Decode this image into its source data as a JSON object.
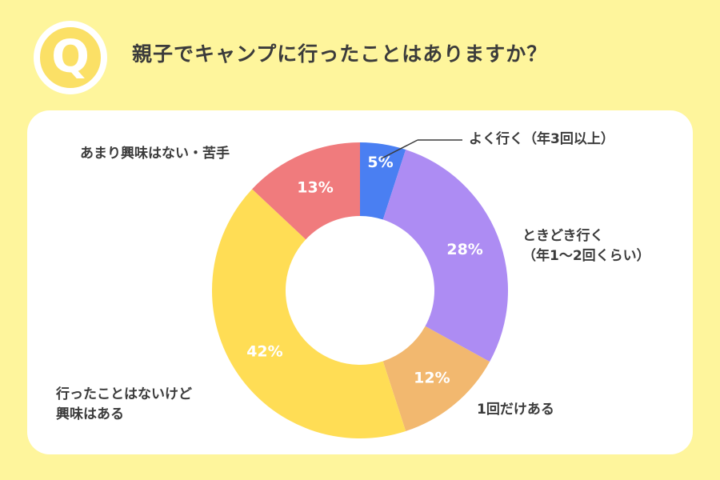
{
  "badge_letter": "Q",
  "question": "親子でキャンプに行ったことはありますか？",
  "colors": {
    "background": "#fef59c",
    "card": "#ffffff",
    "text": "#3b3b3b",
    "badge": "#fbe066"
  },
  "chart_data": {
    "type": "pie",
    "donut": true,
    "title": "",
    "categories": [
      "よく行く（年3回以上）",
      "ときどき行く（年1～2回くらい）",
      "1回だけある",
      "行ったことはないけど興味はある",
      "あまり興味はない・苦手"
    ],
    "values": [
      5,
      28,
      12,
      42,
      13
    ],
    "value_labels": [
      "5%",
      "28%",
      "12%",
      "42%",
      "13%"
    ],
    "colors": [
      "#4a7ff2",
      "#ad8cf3",
      "#f2b86f",
      "#ffdd55",
      "#f07b7d"
    ]
  },
  "labels": {
    "often": "よく行く（年3回以上）",
    "sometimes_1": "ときどき行く",
    "sometimes_2": "（年1～2回くらい）",
    "once": "1回だけある",
    "interested_1": "行ったことはないけど",
    "interested_2": "興味はある",
    "not_interested": "あまり興味はない・苦手"
  }
}
